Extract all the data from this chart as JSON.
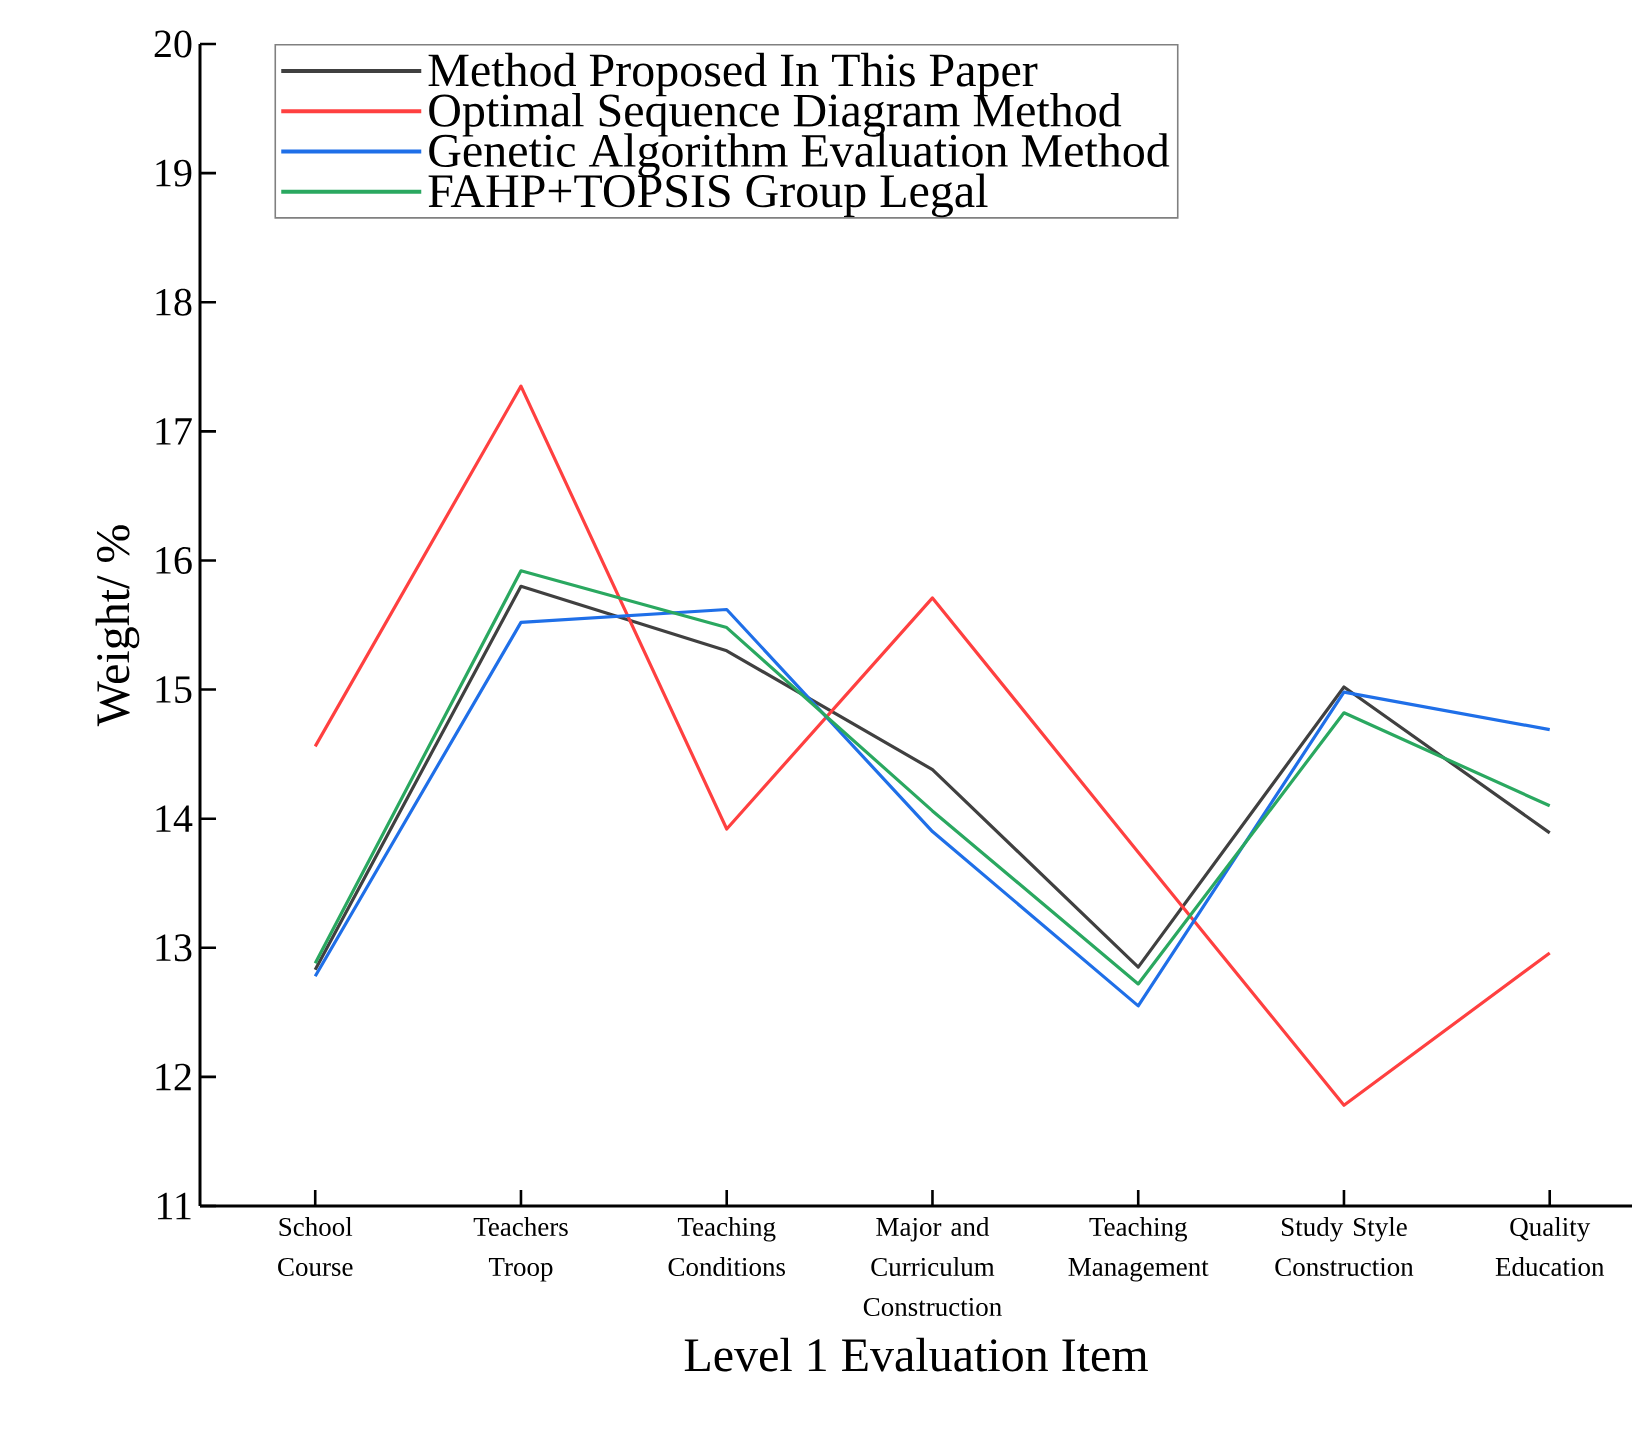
{
  "chart_data": {
    "type": "line",
    "xlabel": "Level 1 Evaluation Item",
    "ylabel": "Weight/ %",
    "categories": [
      "School Course",
      "Teachers Troop",
      "Teaching Conditions",
      "Major and Curriculum Construction",
      "Teaching Management",
      "Study Style Construction",
      "Quality Education"
    ],
    "series": [
      {
        "name": "Method Proposed In This Paper",
        "color": "#404040",
        "values": [
          12.83,
          15.8,
          15.3,
          14.38,
          12.85,
          15.02,
          13.89
        ]
      },
      {
        "name": "Optimal Sequence Diagram Method",
        "color": "#ff4040",
        "values": [
          14.56,
          17.35,
          13.92,
          15.71,
          13.74,
          11.78,
          12.96
        ]
      },
      {
        "name": "Genetic Algorithm Evaluation Method",
        "color": "#1f6fe8",
        "values": [
          12.78,
          15.52,
          15.62,
          13.9,
          12.55,
          14.98,
          14.69
        ]
      },
      {
        "name": "FAHP+TOPSIS Group Legal",
        "color": "#2aa860",
        "values": [
          12.88,
          15.92,
          15.48,
          14.06,
          12.72,
          14.82,
          14.1
        ]
      }
    ],
    "ylim": [
      11,
      20
    ],
    "yticks": [
      11,
      12,
      13,
      14,
      15,
      16,
      17,
      18,
      19,
      20
    ],
    "legend": "top left",
    "marker": "none",
    "line_style": "solid",
    "grid": false
  }
}
